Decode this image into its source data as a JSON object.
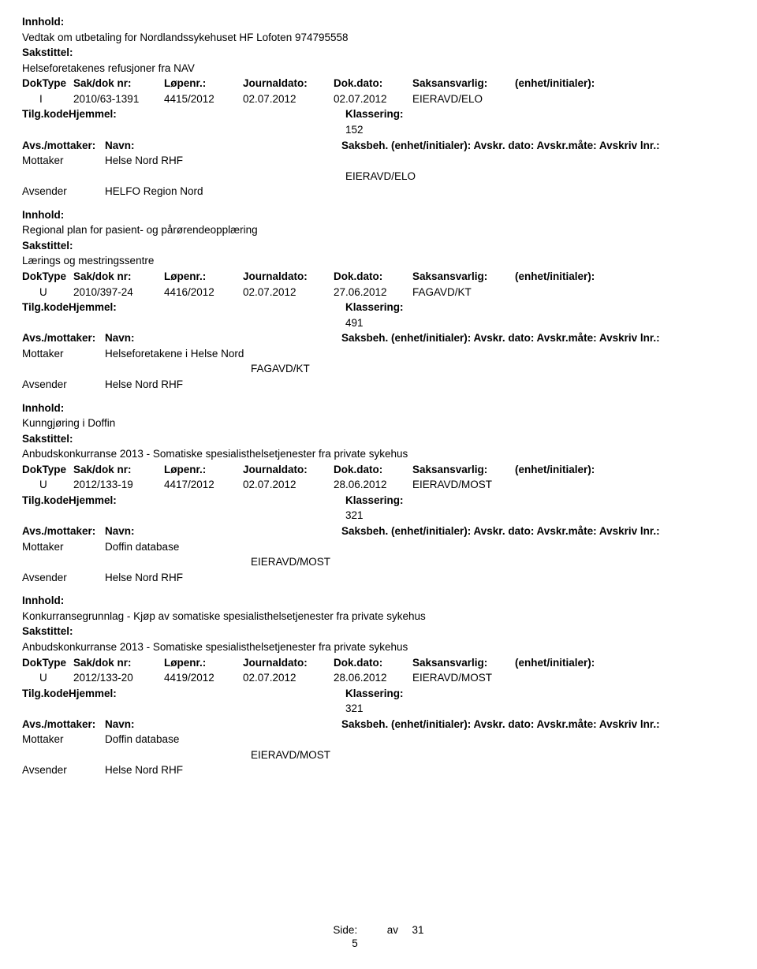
{
  "labels": {
    "innhold": "Innhold:",
    "sakstittel": "Sakstittel:",
    "doktype": "DokType",
    "sakdok": "Sak/dok nr:",
    "lopenr": "Løpenr.:",
    "journaldato": "Journaldato:",
    "dokdato": "Dok.dato:",
    "saksansvarlig": "Saksansvarlig:",
    "enhet": "(enhet/initialer):",
    "tilgkode": "Tilg.kode",
    "hjemmel": "Hjemmel:",
    "klassering": "Klassering:",
    "avsmottaker": "Avs./mottaker:",
    "navn": "Navn:",
    "saksbeh": "Saksbeh. (enhet/initialer):",
    "avskrdato": "Avskr. dato:",
    "avskrmate": "Avskr.måte:",
    "avskrivlnr": "Avskriv lnr.:",
    "mottaker": "Mottaker",
    "avsender": "Avsender"
  },
  "entries": [
    {
      "innhold": "Vedtak om utbetaling for Nordlandssykehuset HF Lofoten 974795558",
      "sakstittel": "Helseforetakenes refusjoner fra NAV",
      "doktype": "I",
      "sakdok": "2010/63-1391",
      "lopenr": "4415/2012",
      "journaldato": "02.07.2012",
      "dokdato": "02.07.2012",
      "saksansvarlig": "EIERAVD/ELO",
      "klassering": "152",
      "mottaker": "Helse Nord RHF",
      "saksbeh": "EIERAVD/ELO",
      "avsender": "HELFO Region Nord"
    },
    {
      "innhold": "Regional plan for pasient- og pårørendeopplæring",
      "sakstittel": "Lærings og mestringssentre",
      "doktype": "U",
      "sakdok": "2010/397-24",
      "lopenr": "4416/2012",
      "journaldato": "02.07.2012",
      "dokdato": "27.06.2012",
      "saksansvarlig": "FAGAVD/KT",
      "klassering": "491",
      "mottaker": "Helseforetakene i Helse Nord",
      "saksbeh": "FAGAVD/KT",
      "avsender": "Helse Nord RHF"
    },
    {
      "innhold": "Kunngjøring i Doffin",
      "sakstittel": "Anbudskonkurranse 2013 - Somatiske spesialisthelsetjenester fra private sykehus",
      "doktype": "U",
      "sakdok": "2012/133-19",
      "lopenr": "4417/2012",
      "journaldato": "02.07.2012",
      "dokdato": "28.06.2012",
      "saksansvarlig": "EIERAVD/MOST",
      "klassering": "321",
      "mottaker": "Doffin database",
      "saksbeh": "EIERAVD/MOST",
      "avsender": "Helse Nord RHF"
    },
    {
      "innhold": "Konkurransegrunnlag - Kjøp av somatiske spesialisthelsetjenester fra private sykehus",
      "sakstittel": "Anbudskonkurranse 2013 - Somatiske spesialisthelsetjenester fra private sykehus",
      "doktype": "U",
      "sakdok": "2012/133-20",
      "lopenr": "4419/2012",
      "journaldato": "02.07.2012",
      "dokdato": "28.06.2012",
      "saksansvarlig": "EIERAVD/MOST",
      "klassering": "321",
      "mottaker": "Doffin database",
      "saksbeh": "EIERAVD/MOST",
      "avsender": "Helse Nord RHF"
    }
  ],
  "footer": {
    "side": "Side:",
    "av": "av",
    "total": "31",
    "page": "5"
  }
}
